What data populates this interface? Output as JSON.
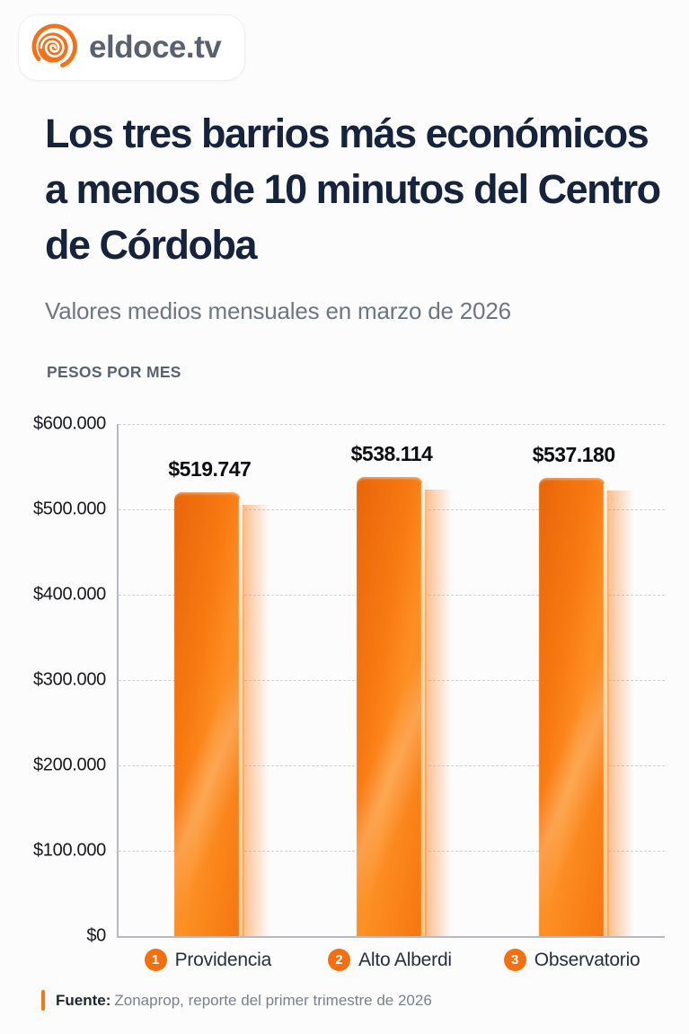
{
  "brand": {
    "logo_text": "eldoce.tv",
    "logo_color": "#f4711c"
  },
  "header": {
    "title": "Los tres barrios más económicos a menos de 10 minutos del Centro de Córdoba",
    "title_lines": [
      "Los tres barrios más económicos",
      "a menos de 10 minutos del Centro",
      "de Córdoba"
    ],
    "subtitle": "Valores medios mensuales en marzo de 2026"
  },
  "chart_data": {
    "type": "bar",
    "title": "Los tres barrios más económicos a menos de 10 minutos del Centro de Córdoba",
    "subtitle": "Valores medios mensuales en marzo de 2026",
    "unit_label": "PESOS POR MES",
    "categories": [
      "Providencia",
      "Alto Alberdi",
      "Observatorio"
    ],
    "ranks": [
      "1",
      "2",
      "3"
    ],
    "values": [
      519747,
      538114,
      537180
    ],
    "value_labels": [
      "$519.747",
      "$538.114",
      "$537.180"
    ],
    "ylim": [
      0,
      600000
    ],
    "ytick_labels": [
      "$600.000",
      "$500.000",
      "$400.000",
      "$300.000",
      "$200.000",
      "$100.000",
      "$0"
    ],
    "grid": true,
    "grid_style": "dashed",
    "legend": false,
    "bar_color": "#f87a12",
    "xlabel": "",
    "ylabel": "PESOS POR MES"
  },
  "footer": {
    "source_label": "Fuente:",
    "source_text": "Zonaprop, reporte del primer trimestre de 2026"
  },
  "colors": {
    "accent_orange": "#f4770f",
    "title_navy": "#16233c",
    "subtitle_gray": "#6e7681",
    "axis_gray": "#b7bbc1"
  }
}
